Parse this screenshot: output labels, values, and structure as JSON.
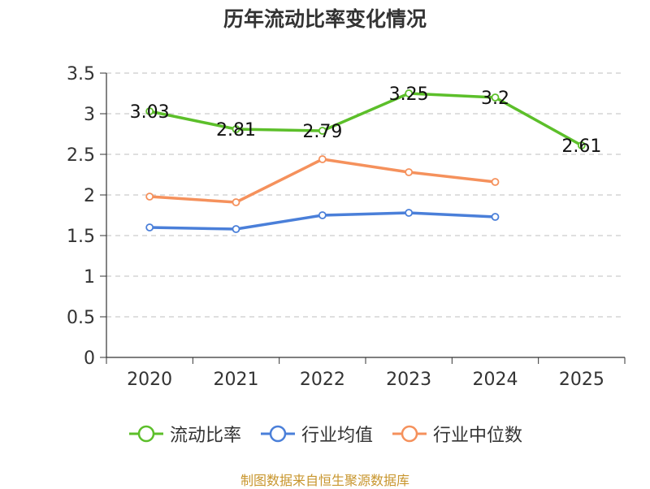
{
  "chart_data": {
    "type": "line",
    "title": "历年流动比率变化情况",
    "categories": [
      "2020",
      "2021",
      "2022",
      "2023",
      "2024",
      "2025"
    ],
    "ylim": [
      0,
      3.5
    ],
    "yticks": [
      "0",
      "0.5",
      "1",
      "1.5",
      "2",
      "2.5",
      "3",
      "3.5"
    ],
    "grid": true,
    "series": [
      {
        "name": "流动比率",
        "color": "#5cbf2a",
        "values": [
          3.03,
          2.81,
          2.79,
          3.25,
          3.2,
          2.61
        ],
        "labels": [
          "3.03",
          "2.81",
          "2.79",
          "3.25",
          "3.2",
          "2.61"
        ],
        "show_labels": true
      },
      {
        "name": "行业均值",
        "color": "#4a7fd9",
        "values": [
          1.6,
          1.58,
          1.75,
          1.78,
          1.73,
          null
        ],
        "show_labels": false
      },
      {
        "name": "行业中位数",
        "color": "#f5915c",
        "values": [
          1.98,
          1.91,
          2.44,
          2.28,
          2.16,
          null
        ],
        "show_labels": false
      }
    ],
    "legend_position": "bottom"
  },
  "source": "制图数据来自恒生聚源数据库"
}
